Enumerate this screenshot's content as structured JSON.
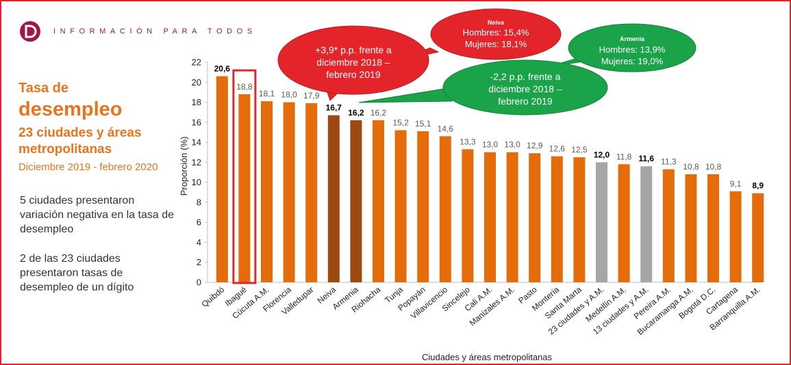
{
  "header": {
    "tagline": "INFORMACIÓN PARA TODOS"
  },
  "left_panel": {
    "title_line1": "Tasa de",
    "title_line2": "desempleo",
    "title_line3": "23 ciudades y áreas metropolitanas",
    "subtitle": "Diciembre 2019 - febrero 2020",
    "note1": "5 ciudades presentaron variación negativa en la tasa de desempleo",
    "note2": "2 de las 23 ciudades presentaron tasas de desempleo de un dígito"
  },
  "colors": {
    "orange": "#e46c0a",
    "brown": "#9c4a0f",
    "gray": "#a6a6a6",
    "red": "#e3242b",
    "green": "#1ba34a",
    "highlight_border": "#e3242b"
  },
  "callouts": {
    "neiva_detail": {
      "title": "Neiva",
      "line1": "Hombres: 15,4%",
      "line2": "Mujeres: 18,1%"
    },
    "neiva_change": {
      "line1": "+3,9* p.p. frente a",
      "line2": "diciembre 2018 –",
      "line3": "febrero 2019"
    },
    "armenia_detail": {
      "title": "Armenia",
      "line1": "Hombres: 13,9%",
      "line2": "Mujeres: 19,0%"
    },
    "armenia_change": {
      "line1": "-2,2 p.p. frente a",
      "line2": "diciembre 2018 –",
      "line3": "febrero 2019"
    }
  },
  "chart_data": {
    "type": "bar",
    "title": "",
    "xlabel": "Ciudades y áreas metropolitanas",
    "ylabel": "Proporción (%)",
    "ylim": [
      0,
      22
    ],
    "yticks": [
      0,
      2,
      4,
      6,
      8,
      10,
      12,
      14,
      16,
      18,
      20,
      22
    ],
    "grid": false,
    "categories": [
      "Quibdó",
      "Ibagué",
      "Cúcuta A.M.",
      "Florencia",
      "Valledupar",
      "Neiva",
      "Armenia",
      "Riohacha",
      "Tunja",
      "Popayán",
      "Villavicencio",
      "Sincelejo",
      "Cali A.M.",
      "Manizales A.M.",
      "Pasto",
      "Montería",
      "Santa Marta",
      "23 ciudades y A.M.",
      "Medellín A.M.",
      "13 ciudades y A.M.",
      "Pereira A.M.",
      "Bucaramanga A.M.",
      "Bogotá D.C.",
      "Cartagena",
      "Barranquilla A.M."
    ],
    "values": [
      20.6,
      18.8,
      18.1,
      18.0,
      17.9,
      16.7,
      16.2,
      16.2,
      15.2,
      15.1,
      14.6,
      13.3,
      13.0,
      13.0,
      12.9,
      12.6,
      12.5,
      12.0,
      11.8,
      11.6,
      11.3,
      10.8,
      10.8,
      9.1,
      8.9
    ],
    "value_labels": [
      "20,6",
      "18,8",
      "18,1",
      "18,0",
      "17,9",
      "16,7",
      "16,2",
      "16,2",
      "15,2",
      "15,1",
      "14,6",
      "13,3",
      "13,0",
      "13,0",
      "12,9",
      "12,6",
      "12,5",
      "12,0",
      "11,8",
      "11,6",
      "11,3",
      "10,8",
      "10,8",
      "9,1",
      "8,9"
    ],
    "bar_colors": [
      "orange",
      "orange",
      "orange",
      "orange",
      "orange",
      "brown",
      "brown",
      "orange",
      "orange",
      "orange",
      "orange",
      "orange",
      "orange",
      "orange",
      "orange",
      "orange",
      "orange",
      "gray",
      "orange",
      "gray",
      "orange",
      "orange",
      "orange",
      "orange",
      "orange"
    ],
    "bold_labels": [
      true,
      false,
      false,
      false,
      false,
      true,
      true,
      false,
      false,
      false,
      false,
      false,
      false,
      false,
      false,
      false,
      false,
      true,
      false,
      true,
      false,
      false,
      false,
      false,
      true
    ],
    "highlighted_category": "Ibagué"
  }
}
